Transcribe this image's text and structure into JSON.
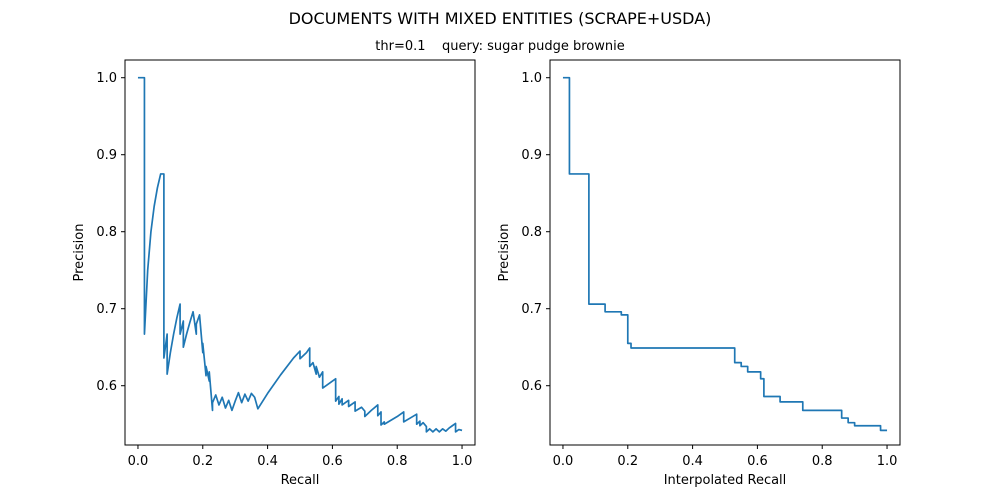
{
  "figure": {
    "title": "DOCUMENTS WITH MIXED ENTITIES (SCRAPE+USDA)",
    "subtitle": "thr=0.1    query: sugar pudge brownie",
    "line_color": "#1f77b4"
  },
  "chart_data": [
    {
      "type": "line",
      "xlabel": "Recall",
      "ylabel": "Precision",
      "xlim": [
        -0.04,
        1.04
      ],
      "ylim": [
        0.523,
        1.023
      ],
      "xticks": [
        "0.0",
        "0.2",
        "0.4",
        "0.6",
        "0.8",
        "1.0"
      ],
      "yticks": [
        "0.6",
        "0.7",
        "0.8",
        "0.9",
        "1.0"
      ],
      "grid": false,
      "series": [
        {
          "x": [
            0.0,
            0.02,
            0.02,
            0.03,
            0.04,
            0.05,
            0.06,
            0.07,
            0.08,
            0.08,
            0.09,
            0.09,
            0.1,
            0.11,
            0.12,
            0.13,
            0.13,
            0.14,
            0.14,
            0.15,
            0.16,
            0.17,
            0.18,
            0.18,
            0.19,
            0.2,
            0.2,
            0.21,
            0.21,
            0.22,
            0.22,
            0.23,
            0.23,
            0.24,
            0.25,
            0.26,
            0.27,
            0.28,
            0.29,
            0.3,
            0.31,
            0.32,
            0.33,
            0.34,
            0.35,
            0.36,
            0.37,
            0.4,
            0.44,
            0.48,
            0.5,
            0.5,
            0.52,
            0.53,
            0.53,
            0.54,
            0.55,
            0.55,
            0.56,
            0.57,
            0.57,
            0.59,
            0.61,
            0.61,
            0.62,
            0.62,
            0.63,
            0.63,
            0.65,
            0.65,
            0.67,
            0.67,
            0.69,
            0.7,
            0.7,
            0.72,
            0.74,
            0.74,
            0.75,
            0.75,
            0.76,
            0.76,
            0.78,
            0.8,
            0.82,
            0.82,
            0.84,
            0.86,
            0.86,
            0.87,
            0.87,
            0.88,
            0.89,
            0.89,
            0.9,
            0.91,
            0.92,
            0.93,
            0.94,
            0.95,
            0.96,
            0.97,
            0.98,
            0.98,
            0.99,
            1.0
          ],
          "y": [
            1.0,
            1.0,
            0.667,
            0.75,
            0.8,
            0.833,
            0.857,
            0.875,
            0.875,
            0.636,
            0.667,
            0.615,
            0.643,
            0.667,
            0.688,
            0.706,
            0.667,
            0.684,
            0.65,
            0.667,
            0.682,
            0.696,
            0.667,
            0.68,
            0.692,
            0.643,
            0.655,
            0.613,
            0.625,
            0.606,
            0.618,
            0.568,
            0.578,
            0.588,
            0.575,
            0.585,
            0.571,
            0.581,
            0.568,
            0.58,
            0.591,
            0.578,
            0.589,
            0.58,
            0.59,
            0.585,
            0.57,
            0.59,
            0.614,
            0.636,
            0.645,
            0.635,
            0.643,
            0.649,
            0.625,
            0.63,
            0.615,
            0.625,
            0.611,
            0.618,
            0.597,
            0.603,
            0.609,
            0.58,
            0.586,
            0.576,
            0.583,
            0.575,
            0.581,
            0.573,
            0.579,
            0.567,
            0.572,
            0.567,
            0.56,
            0.568,
            0.575,
            0.561,
            0.566,
            0.549,
            0.553,
            0.55,
            0.555,
            0.56,
            0.566,
            0.553,
            0.558,
            0.563,
            0.55,
            0.554,
            0.548,
            0.552,
            0.547,
            0.54,
            0.544,
            0.54,
            0.544,
            0.54,
            0.544,
            0.541,
            0.545,
            0.548,
            0.551,
            0.54,
            0.543,
            0.542
          ]
        }
      ]
    },
    {
      "type": "line",
      "xlabel": "Interpolated Recall",
      "ylabel": "Precision",
      "xlim": [
        -0.04,
        1.04
      ],
      "ylim": [
        0.523,
        1.023
      ],
      "xticks": [
        "0.0",
        "0.2",
        "0.4",
        "0.6",
        "0.8",
        "1.0"
      ],
      "yticks": [
        "0.6",
        "0.7",
        "0.8",
        "0.9",
        "1.0"
      ],
      "grid": false,
      "series": [
        {
          "x": [
            0.0,
            0.02,
            0.02,
            0.08,
            0.08,
            0.13,
            0.13,
            0.18,
            0.18,
            0.2,
            0.2,
            0.21,
            0.21,
            0.53,
            0.53,
            0.55,
            0.55,
            0.57,
            0.57,
            0.61,
            0.61,
            0.62,
            0.62,
            0.67,
            0.67,
            0.74,
            0.74,
            0.86,
            0.86,
            0.88,
            0.88,
            0.9,
            0.9,
            0.98,
            0.98,
            1.0
          ],
          "y": [
            1.0,
            1.0,
            0.875,
            0.875,
            0.706,
            0.706,
            0.696,
            0.696,
            0.692,
            0.692,
            0.655,
            0.655,
            0.649,
            0.649,
            0.63,
            0.63,
            0.625,
            0.625,
            0.618,
            0.618,
            0.609,
            0.609,
            0.586,
            0.586,
            0.579,
            0.579,
            0.568,
            0.568,
            0.558,
            0.558,
            0.552,
            0.552,
            0.548,
            0.548,
            0.542,
            0.542
          ]
        }
      ]
    }
  ]
}
